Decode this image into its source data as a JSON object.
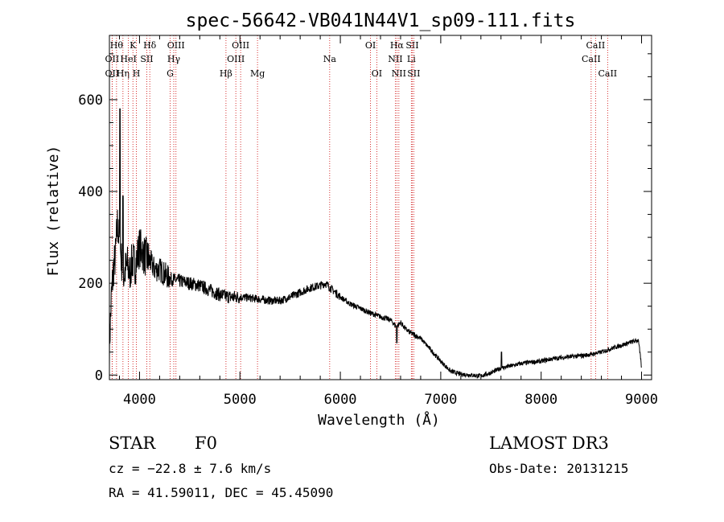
{
  "chart_data": {
    "type": "line",
    "title": "spec-56642-VB041N44V1_sp09-111.fits",
    "xlabel": "Wavelength (Å)",
    "ylabel": "Flux (relative)",
    "xlim": [
      3700,
      9100
    ],
    "ylim": [
      -10,
      740
    ],
    "xticks": [
      4000,
      5000,
      6000,
      7000,
      8000,
      9000
    ],
    "yticks": [
      0,
      200,
      400,
      600
    ],
    "series": [
      {
        "name": "spectrum",
        "x": [
          3700,
          3720,
          3740,
          3760,
          3780,
          3800,
          3820,
          3840,
          3860,
          3880,
          3900,
          3930,
          3960,
          4000,
          4050,
          4100,
          4150,
          4200,
          4300,
          4400,
          4500,
          4600,
          4700,
          4800,
          4900,
          5000,
          5100,
          5200,
          5300,
          5400,
          5500,
          5600,
          5700,
          5800,
          5850,
          5900,
          6000,
          6100,
          6200,
          6300,
          6400,
          6500,
          6560,
          6600,
          6650,
          6700,
          6800,
          6900,
          7000,
          7100,
          7200,
          7300,
          7400,
          7500,
          7600,
          7700,
          7800,
          7900,
          8000,
          8100,
          8200,
          8300,
          8400,
          8500,
          8600,
          8700,
          8800,
          8900,
          8970,
          9000
        ],
        "y": [
          60,
          170,
          230,
          260,
          330,
          290,
          250,
          210,
          230,
          240,
          220,
          250,
          240,
          280,
          260,
          250,
          230,
          230,
          210,
          205,
          200,
          195,
          185,
          175,
          170,
          170,
          168,
          165,
          162,
          162,
          170,
          180,
          190,
          195,
          200,
          190,
          170,
          155,
          145,
          135,
          127,
          120,
          105,
          115,
          100,
          92,
          80,
          55,
          30,
          8,
          2,
          0,
          -2,
          5,
          15,
          20,
          25,
          28,
          30,
          35,
          38,
          40,
          42,
          45,
          50,
          58,
          65,
          72,
          76,
          15
        ]
      }
    ],
    "line_markers": [
      {
        "name": "OII",
        "x": 3727,
        "row": 2
      },
      {
        "name": "OII",
        "x": 3727,
        "row": 3
      },
      {
        "name": "Hθ",
        "x": 3771,
        "row": 1
      },
      {
        "name": "Hη",
        "x": 3835,
        "row": 3
      },
      {
        "name": "HeI",
        "x": 3889,
        "row": 2
      },
      {
        "name": "K",
        "x": 3934,
        "row": 1
      },
      {
        "name": "H",
        "x": 3969,
        "row": 3
      },
      {
        "name": "SII",
        "x": 4072,
        "row": 2
      },
      {
        "name": "Hδ",
        "x": 4102,
        "row": 1
      },
      {
        "name": "G",
        "x": 4305,
        "row": 3
      },
      {
        "name": "Hγ",
        "x": 4341,
        "row": 2
      },
      {
        "name": "OIII",
        "x": 4363,
        "row": 1
      },
      {
        "name": "Hβ",
        "x": 4861,
        "row": 3
      },
      {
        "name": "OIII",
        "x": 4959,
        "row": 2
      },
      {
        "name": "OIII",
        "x": 5007,
        "row": 1
      },
      {
        "name": "Mg",
        "x": 5175,
        "row": 3
      },
      {
        "name": "Na",
        "x": 5894,
        "row": 2
      },
      {
        "name": "OI",
        "x": 6300,
        "row": 1
      },
      {
        "name": "OI",
        "x": 6363,
        "row": 3
      },
      {
        "name": "NII",
        "x": 6548,
        "row": 2
      },
      {
        "name": "Hα",
        "x": 6563,
        "row": 1
      },
      {
        "name": "NII",
        "x": 6583,
        "row": 3
      },
      {
        "name": "Li",
        "x": 6707,
        "row": 2
      },
      {
        "name": "SII",
        "x": 6716,
        "row": 1
      },
      {
        "name": "SII",
        "x": 6731,
        "row": 3
      },
      {
        "name": "CaII",
        "x": 8498,
        "row": 2
      },
      {
        "name": "CaII",
        "x": 8542,
        "row": 1
      },
      {
        "name": "CaII",
        "x": 8662,
        "row": 3
      }
    ]
  },
  "info": {
    "object_type": "STAR",
    "subclass": "F0",
    "survey": "LAMOST DR3",
    "cz": "cz = −22.8 ± 7.6 km/s",
    "obs_date": "Obs-Date: 20131215",
    "coords": "RA =  41.59011, DEC =  45.45090"
  },
  "colors": {
    "line": "#000000",
    "marker": "#cc0000",
    "axes": "#000000"
  }
}
